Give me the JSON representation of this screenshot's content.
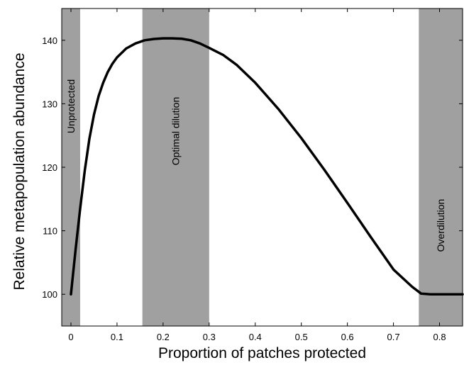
{
  "chart_data": {
    "type": "line",
    "title": "",
    "xlabel": "Proportion of patches protected",
    "ylabel": "Relative metapopulation abundance",
    "xlim": [
      -0.02,
      0.85
    ],
    "ylim": [
      95,
      145
    ],
    "grid": false,
    "x_ticks": [
      0,
      0.1,
      0.2,
      0.3,
      0.4,
      0.5,
      0.6,
      0.7,
      0.8
    ],
    "x_tick_labels": [
      "0",
      "0.1",
      "0.2",
      "0.3",
      "0.4",
      "0.5",
      "0.6",
      "0.7",
      "0.8"
    ],
    "y_ticks": [
      100,
      110,
      120,
      130,
      140
    ],
    "y_tick_labels": [
      "100",
      "110",
      "120",
      "130",
      "140"
    ],
    "bands": [
      {
        "label": "Unprotected",
        "x_start": -0.02,
        "x_end": 0.02,
        "color": "#a0a0a0"
      },
      {
        "label": "Optimal dilution",
        "x_start": 0.155,
        "x_end": 0.3,
        "color": "#a0a0a0"
      },
      {
        "label": "Overdilution",
        "x_start": 0.755,
        "x_end": 0.85,
        "color": "#a0a0a0"
      }
    ],
    "line_color": "#000000",
    "series": [
      {
        "x": [
          0,
          0.01,
          0.02,
          0.03,
          0.04,
          0.05,
          0.06,
          0.07,
          0.08,
          0.09,
          0.1,
          0.12,
          0.14,
          0.16,
          0.18,
          0.2,
          0.22,
          0.24,
          0.26,
          0.28,
          0.3,
          0.33,
          0.36,
          0.4,
          0.45,
          0.5,
          0.55,
          0.6,
          0.65,
          0.7,
          0.74,
          0.76,
          0.78,
          0.8,
          0.82,
          0.85
        ],
        "values": [
          100,
          107,
          113.5,
          119.5,
          124.5,
          128.3,
          131.2,
          133.3,
          135.0,
          136.3,
          137.3,
          138.7,
          139.5,
          140.0,
          140.2,
          140.3,
          140.3,
          140.25,
          140.0,
          139.5,
          138.8,
          137.7,
          136.1,
          133.3,
          129.2,
          124.6,
          119.6,
          114.4,
          109.1,
          103.9,
          101.2,
          100.1,
          100.0,
          100.0,
          100.0,
          100.0
        ]
      }
    ]
  }
}
